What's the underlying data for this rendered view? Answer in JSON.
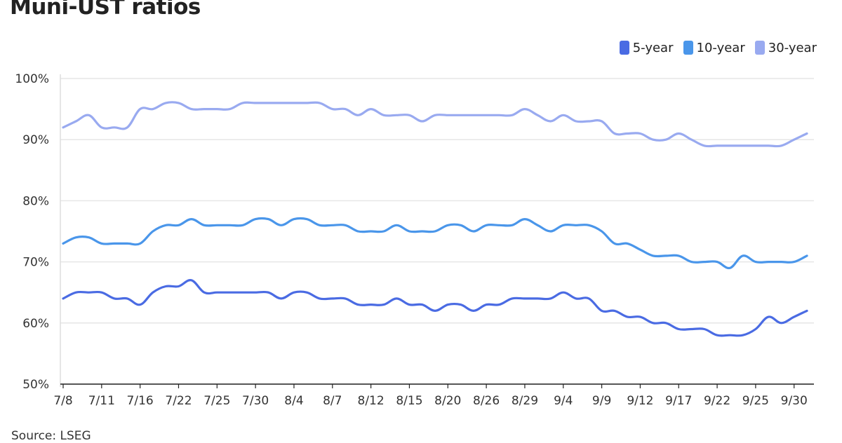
{
  "chart_data": {
    "type": "line",
    "title": "Muni-UST ratios",
    "source": "Source: LSEG",
    "ylim": [
      50,
      100
    ],
    "y_ticks": [
      "50%",
      "60%",
      "70%",
      "80%",
      "90%",
      "100%"
    ],
    "y_tick_values": [
      50,
      60,
      70,
      80,
      90,
      100
    ],
    "x_tick_labels": [
      "7/8",
      "7/11",
      "7/16",
      "7/22",
      "7/25",
      "7/30",
      "8/4",
      "8/7",
      "8/12",
      "8/15",
      "8/20",
      "8/26",
      "8/29",
      "9/4",
      "9/9",
      "9/12",
      "9/17",
      "9/22",
      "9/25",
      "9/30"
    ],
    "x_tick_index": [
      0,
      3,
      6,
      9,
      12,
      15,
      18,
      21,
      24,
      27,
      30,
      33,
      36,
      39,
      42,
      45,
      48,
      51,
      54,
      57
    ],
    "grid": true,
    "legend_position": "top-right",
    "series": [
      {
        "name": "5-year",
        "color": "#4a6be3",
        "values": [
          64,
          65,
          65,
          65,
          64,
          64,
          63,
          65,
          66,
          66,
          67,
          65,
          65,
          65,
          65,
          65,
          65,
          64,
          65,
          65,
          64,
          64,
          64,
          63,
          63,
          63,
          64,
          63,
          63,
          62,
          63,
          63,
          62,
          63,
          63,
          64,
          64,
          64,
          64,
          65,
          64,
          64,
          62,
          62,
          61,
          61,
          60,
          60,
          59,
          59,
          59,
          58,
          58,
          58,
          59,
          61,
          60,
          61,
          62
        ]
      },
      {
        "name": "10-year",
        "color": "#4a96ea",
        "values": [
          73,
          74,
          74,
          73,
          73,
          73,
          73,
          75,
          76,
          76,
          77,
          76,
          76,
          76,
          76,
          77,
          77,
          76,
          77,
          77,
          76,
          76,
          76,
          75,
          75,
          75,
          76,
          75,
          75,
          75,
          76,
          76,
          75,
          76,
          76,
          76,
          77,
          76,
          75,
          76,
          76,
          76,
          75,
          73,
          73,
          72,
          71,
          71,
          71,
          70,
          70,
          70,
          69,
          71,
          70,
          70,
          70,
          70,
          71
        ]
      },
      {
        "name": "30-year",
        "color": "#99aaf0",
        "values": [
          92,
          93,
          94,
          92,
          92,
          92,
          95,
          95,
          96,
          96,
          95,
          95,
          95,
          95,
          96,
          96,
          96,
          96,
          96,
          96,
          96,
          95,
          95,
          94,
          95,
          94,
          94,
          94,
          93,
          94,
          94,
          94,
          94,
          94,
          94,
          94,
          95,
          94,
          93,
          94,
          93,
          93,
          93,
          91,
          91,
          91,
          90,
          90,
          91,
          90,
          89,
          89,
          89,
          89,
          89,
          89,
          89,
          90,
          91
        ]
      }
    ]
  }
}
